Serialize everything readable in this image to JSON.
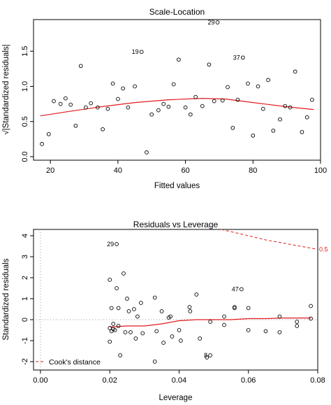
{
  "chart_data": [
    {
      "type": "scatter",
      "title": "Scale-Location",
      "xlabel": "Fitted values",
      "ylabel": "√|Standardized residuals|",
      "xlim": [
        15,
        100
      ],
      "ylim": [
        -0.05,
        1.95
      ],
      "xticks": [
        20,
        40,
        60,
        80,
        100
      ],
      "yticks": [
        0.0,
        0.5,
        1.0,
        1.5
      ],
      "xtick_labels": [
        "20",
        "40",
        "60",
        "80",
        "100"
      ],
      "ytick_labels": [
        "0.0",
        "0.5",
        "1.0",
        "1.5"
      ],
      "points": [
        {
          "x": 17.5,
          "y": 0.18
        },
        {
          "x": 19.5,
          "y": 0.32
        },
        {
          "x": 21.0,
          "y": 0.79
        },
        {
          "x": 23.0,
          "y": 0.75
        },
        {
          "x": 24.5,
          "y": 0.83
        },
        {
          "x": 26.0,
          "y": 0.74
        },
        {
          "x": 27.5,
          "y": 0.44
        },
        {
          "x": 29.0,
          "y": 1.29
        },
        {
          "x": 30.5,
          "y": 0.7
        },
        {
          "x": 32.0,
          "y": 0.76
        },
        {
          "x": 34.0,
          "y": 0.7
        },
        {
          "x": 35.5,
          "y": 0.39
        },
        {
          "x": 37.0,
          "y": 0.68
        },
        {
          "x": 38.5,
          "y": 1.04
        },
        {
          "x": 40.0,
          "y": 0.82
        },
        {
          "x": 41.5,
          "y": 0.97
        },
        {
          "x": 43.0,
          "y": 0.7
        },
        {
          "x": 45.0,
          "y": 1.0
        },
        {
          "x": 47.0,
          "y": 1.49
        },
        {
          "x": 48.5,
          "y": 0.06
        },
        {
          "x": 50.0,
          "y": 0.6
        },
        {
          "x": 52.0,
          "y": 0.66
        },
        {
          "x": 53.5,
          "y": 0.75
        },
        {
          "x": 55.0,
          "y": 0.71
        },
        {
          "x": 56.5,
          "y": 1.03
        },
        {
          "x": 58.0,
          "y": 1.38
        },
        {
          "x": 60.0,
          "y": 0.7
        },
        {
          "x": 61.5,
          "y": 0.6
        },
        {
          "x": 63.0,
          "y": 0.85
        },
        {
          "x": 65.0,
          "y": 0.72
        },
        {
          "x": 67.0,
          "y": 1.31
        },
        {
          "x": 68.5,
          "y": 0.79
        },
        {
          "x": 69.5,
          "y": 1.91
        },
        {
          "x": 71.0,
          "y": 0.8
        },
        {
          "x": 72.5,
          "y": 0.99
        },
        {
          "x": 74.0,
          "y": 0.41
        },
        {
          "x": 75.5,
          "y": 0.81
        },
        {
          "x": 77.0,
          "y": 1.41
        },
        {
          "x": 78.5,
          "y": 1.04
        },
        {
          "x": 80.0,
          "y": 0.3
        },
        {
          "x": 81.5,
          "y": 1.0
        },
        {
          "x": 83.0,
          "y": 0.68
        },
        {
          "x": 84.5,
          "y": 1.09
        },
        {
          "x": 86.0,
          "y": 0.37
        },
        {
          "x": 88.0,
          "y": 0.53
        },
        {
          "x": 89.5,
          "y": 0.72
        },
        {
          "x": 91.0,
          "y": 0.7
        },
        {
          "x": 92.5,
          "y": 1.21
        },
        {
          "x": 94.5,
          "y": 0.35
        },
        {
          "x": 96.0,
          "y": 0.56
        },
        {
          "x": 97.5,
          "y": 0.81
        }
      ],
      "labeled_points": [
        {
          "label": "29",
          "x": 69.5,
          "y": 1.91
        },
        {
          "label": "19",
          "x": 47.0,
          "y": 1.49
        },
        {
          "label": "37",
          "x": 77.0,
          "y": 1.41
        }
      ],
      "smoother": {
        "color": "#e31a1c",
        "points": [
          {
            "x": 17,
            "y": 0.58
          },
          {
            "x": 25,
            "y": 0.64
          },
          {
            "x": 35,
            "y": 0.71
          },
          {
            "x": 45,
            "y": 0.77
          },
          {
            "x": 55,
            "y": 0.81
          },
          {
            "x": 65,
            "y": 0.83
          },
          {
            "x": 72,
            "y": 0.82
          },
          {
            "x": 80,
            "y": 0.77
          },
          {
            "x": 90,
            "y": 0.71
          },
          {
            "x": 98,
            "y": 0.67
          }
        ]
      }
    },
    {
      "type": "scatter",
      "title": "Residuals vs Leverage",
      "xlabel": "Leverage",
      "ylabel": "Standardized residuals",
      "xlim": [
        -0.002,
        0.08
      ],
      "ylim": [
        -2.4,
        4.3
      ],
      "xticks": [
        0.0,
        0.02,
        0.04,
        0.06,
        0.08
      ],
      "yticks": [
        -2,
        -1,
        0,
        1,
        2,
        3,
        4
      ],
      "xtick_labels": [
        "0.00",
        "0.02",
        "0.04",
        "0.06",
        "0.08"
      ],
      "ytick_labels": [
        "-2",
        "-1",
        "0",
        "1",
        "2",
        "3",
        "4"
      ],
      "points": [
        {
          "x": 0.02,
          "y": 1.9
        },
        {
          "x": 0.0205,
          "y": 0.55
        },
        {
          "x": 0.021,
          "y": -0.2
        },
        {
          "x": 0.02,
          "y": -0.4
        },
        {
          "x": 0.0205,
          "y": -0.55
        },
        {
          "x": 0.021,
          "y": -0.45
        },
        {
          "x": 0.0215,
          "y": -0.5
        },
        {
          "x": 0.02,
          "y": -1.05
        },
        {
          "x": 0.022,
          "y": 3.6
        },
        {
          "x": 0.022,
          "y": 1.5
        },
        {
          "x": 0.0225,
          "y": 0.55
        },
        {
          "x": 0.0225,
          "y": -0.3
        },
        {
          "x": 0.023,
          "y": -1.7
        },
        {
          "x": 0.024,
          "y": 2.2
        },
        {
          "x": 0.0245,
          "y": -0.6
        },
        {
          "x": 0.025,
          "y": 1.0
        },
        {
          "x": 0.0255,
          "y": 0.4
        },
        {
          "x": 0.026,
          "y": -0.6
        },
        {
          "x": 0.027,
          "y": 0.5
        },
        {
          "x": 0.0275,
          "y": -0.9
        },
        {
          "x": 0.028,
          "y": 0.15
        },
        {
          "x": 0.029,
          "y": 0.8
        },
        {
          "x": 0.0295,
          "y": -0.65
        },
        {
          "x": 0.033,
          "y": 1.05
        },
        {
          "x": 0.0335,
          "y": -0.55
        },
        {
          "x": 0.033,
          "y": -2.0
        },
        {
          "x": 0.035,
          "y": 0.4
        },
        {
          "x": 0.0355,
          "y": -1.1
        },
        {
          "x": 0.037,
          "y": 0.1
        },
        {
          "x": 0.0375,
          "y": 0.15
        },
        {
          "x": 0.038,
          "y": -0.8
        },
        {
          "x": 0.04,
          "y": -0.5
        },
        {
          "x": 0.0405,
          "y": -1.0
        },
        {
          "x": 0.043,
          "y": 0.6
        },
        {
          "x": 0.0432,
          "y": 0.4
        },
        {
          "x": 0.045,
          "y": 1.2
        },
        {
          "x": 0.046,
          "y": -0.9
        },
        {
          "x": 0.048,
          "y": -1.8
        },
        {
          "x": 0.049,
          "y": -1.7
        },
        {
          "x": 0.049,
          "y": -0.1
        },
        {
          "x": 0.053,
          "y": 0.15
        },
        {
          "x": 0.053,
          "y": -0.25
        },
        {
          "x": 0.056,
          "y": 0.55
        },
        {
          "x": 0.056,
          "y": 0.6
        },
        {
          "x": 0.058,
          "y": 1.45
        },
        {
          "x": 0.06,
          "y": 0.55
        },
        {
          "x": 0.06,
          "y": -0.5
        },
        {
          "x": 0.065,
          "y": -0.55
        },
        {
          "x": 0.069,
          "y": 0.15
        },
        {
          "x": 0.069,
          "y": -0.6
        },
        {
          "x": 0.074,
          "y": -0.1
        },
        {
          "x": 0.074,
          "y": -0.3
        },
        {
          "x": 0.078,
          "y": 0.65
        },
        {
          "x": 0.078,
          "y": 0.05
        }
      ],
      "labeled_points": [
        {
          "label": "29",
          "x": 0.022,
          "y": 3.6
        },
        {
          "label": "47",
          "x": 0.058,
          "y": 1.45
        },
        {
          "label": "8",
          "x": 0.049,
          "y": -1.7
        }
      ],
      "smoother": {
        "color": "#e31a1c",
        "points": [
          {
            "x": 0.02,
            "y": -0.35
          },
          {
            "x": 0.025,
            "y": -0.3
          },
          {
            "x": 0.03,
            "y": -0.3
          },
          {
            "x": 0.035,
            "y": -0.2
          },
          {
            "x": 0.04,
            "y": -0.05
          },
          {
            "x": 0.045,
            "y": 0.0
          },
          {
            "x": 0.05,
            "y": 0.0
          },
          {
            "x": 0.055,
            "y": 0.0
          },
          {
            "x": 0.06,
            "y": 0.05
          },
          {
            "x": 0.065,
            "y": 0.05
          },
          {
            "x": 0.07,
            "y": 0.08
          },
          {
            "x": 0.078,
            "y": 0.08
          }
        ]
      },
      "cooks_distance": {
        "color": "#e31a1c",
        "contour_label": "0.5",
        "points": [
          {
            "x": 0.0522,
            "y": 4.3
          },
          {
            "x": 0.06,
            "y": 4.0
          },
          {
            "x": 0.065,
            "y": 3.8
          },
          {
            "x": 0.07,
            "y": 3.65
          },
          {
            "x": 0.075,
            "y": 3.5
          },
          {
            "x": 0.08,
            "y": 3.35
          }
        ]
      },
      "legend": {
        "position": "bottom-left",
        "entries": [
          "Cook's distance"
        ]
      }
    }
  ]
}
